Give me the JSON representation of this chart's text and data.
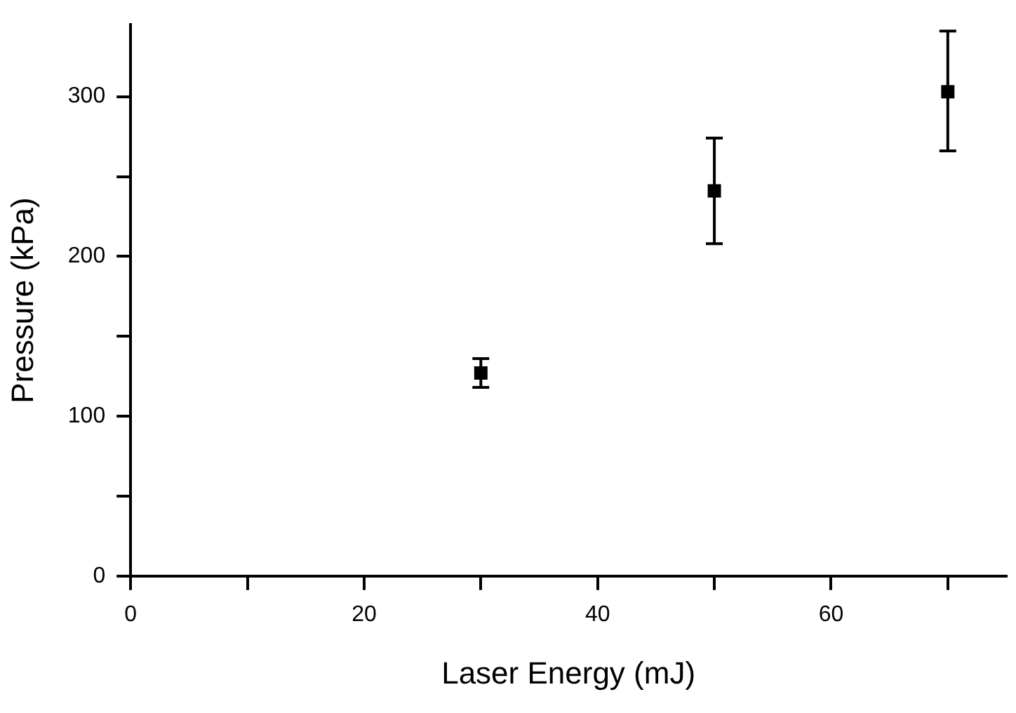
{
  "chart_data": {
    "type": "scatter",
    "xlabel": "Laser Energy (mJ)",
    "ylabel": "Pressure (kPa)",
    "x": [
      30,
      50,
      70
    ],
    "series": [
      {
        "color": "#000000",
        "values": [
          127,
          241,
          303
        ],
        "errors": [
          [
            118,
            136
          ],
          [
            208,
            274
          ],
          [
            266,
            341
          ]
        ]
      }
    ],
    "marker": "square",
    "grid": false,
    "legend": false,
    "xlim": [
      0,
      75
    ],
    "xticks": [
      0,
      {
        "value": 10,
        "label": null
      },
      20,
      {
        "value": 30,
        "label": null
      },
      40,
      {
        "value": 50,
        "label": null
      },
      60,
      {
        "value": 70,
        "label": null
      }
    ],
    "ylim": [
      0,
      345
    ],
    "yticks": [
      0,
      {
        "value": 50,
        "label": null
      },
      100,
      {
        "value": 150,
        "label": null
      },
      200,
      {
        "value": 250,
        "label": null
      },
      300
    ]
  }
}
